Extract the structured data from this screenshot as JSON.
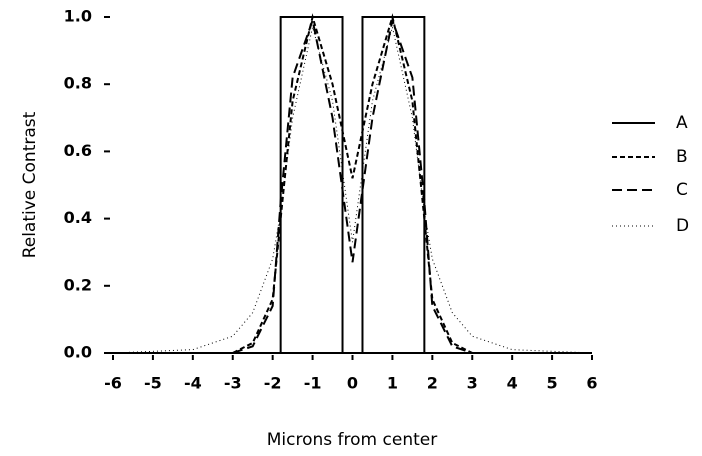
{
  "chart_data": {
    "type": "line",
    "xlabel": "Microns from center",
    "ylabel": "Relative Contrast",
    "xlim": [
      -6,
      6
    ],
    "xticks": [
      -6,
      -5,
      -4,
      -3,
      -2,
      -1,
      0,
      1,
      2,
      3,
      4,
      5,
      6
    ],
    "ylim": [
      0,
      1
    ],
    "yticks": [
      {
        "value": 0,
        "label": "0.0"
      },
      0.2,
      0.4,
      0.6,
      0.8,
      {
        "value": 1,
        "label": "1.0"
      }
    ],
    "grid": false,
    "legend": "right",
    "series": [
      {
        "name": "A",
        "color": "#000000",
        "style": "solid",
        "x": [
          -6,
          -1.8,
          -1.8,
          -0.25,
          -0.25,
          0.25,
          0.25,
          1.8,
          1.8,
          6
        ],
        "values": [
          0,
          0,
          1,
          1,
          0,
          0,
          1,
          1,
          0,
          0
        ]
      },
      {
        "name": "B",
        "color": "#000000",
        "style": "short-dash",
        "x": [
          -6,
          -4,
          -3,
          -2.5,
          -2,
          -1.8,
          -1.5,
          -1,
          -0.5,
          0,
          0.5,
          1,
          1.5,
          1.8,
          2,
          2.5,
          3,
          4,
          6
        ],
        "values": [
          0,
          0,
          0,
          0.03,
          0.16,
          0.4,
          0.75,
          1,
          0.8,
          0.52,
          0.8,
          1,
          0.75,
          0.4,
          0.16,
          0.03,
          0,
          0,
          0
        ]
      },
      {
        "name": "C",
        "color": "#000000",
        "style": "long-dash",
        "x": [
          -6,
          -4,
          -3,
          -2.5,
          -2,
          -1.8,
          -1.5,
          -1,
          -0.5,
          0,
          0.5,
          1,
          1.5,
          1.8,
          2,
          2.5,
          3,
          4,
          6
        ],
        "values": [
          0,
          0,
          0,
          0.02,
          0.14,
          0.45,
          0.82,
          0.99,
          0.7,
          0.27,
          0.7,
          0.99,
          0.82,
          0.45,
          0.14,
          0.02,
          0,
          0,
          0
        ]
      },
      {
        "name": "D",
        "color": "#000000",
        "style": "dotted",
        "x": [
          -6,
          -4,
          -3,
          -2.5,
          -2,
          -1.8,
          -1.5,
          -1,
          -0.5,
          0,
          0.5,
          1,
          1.5,
          1.8,
          2,
          2.5,
          3,
          4,
          6
        ],
        "values": [
          0,
          0.01,
          0.05,
          0.12,
          0.28,
          0.42,
          0.7,
          0.97,
          0.75,
          0.33,
          0.75,
          0.97,
          0.7,
          0.42,
          0.28,
          0.12,
          0.05,
          0.01,
          0
        ]
      }
    ]
  }
}
